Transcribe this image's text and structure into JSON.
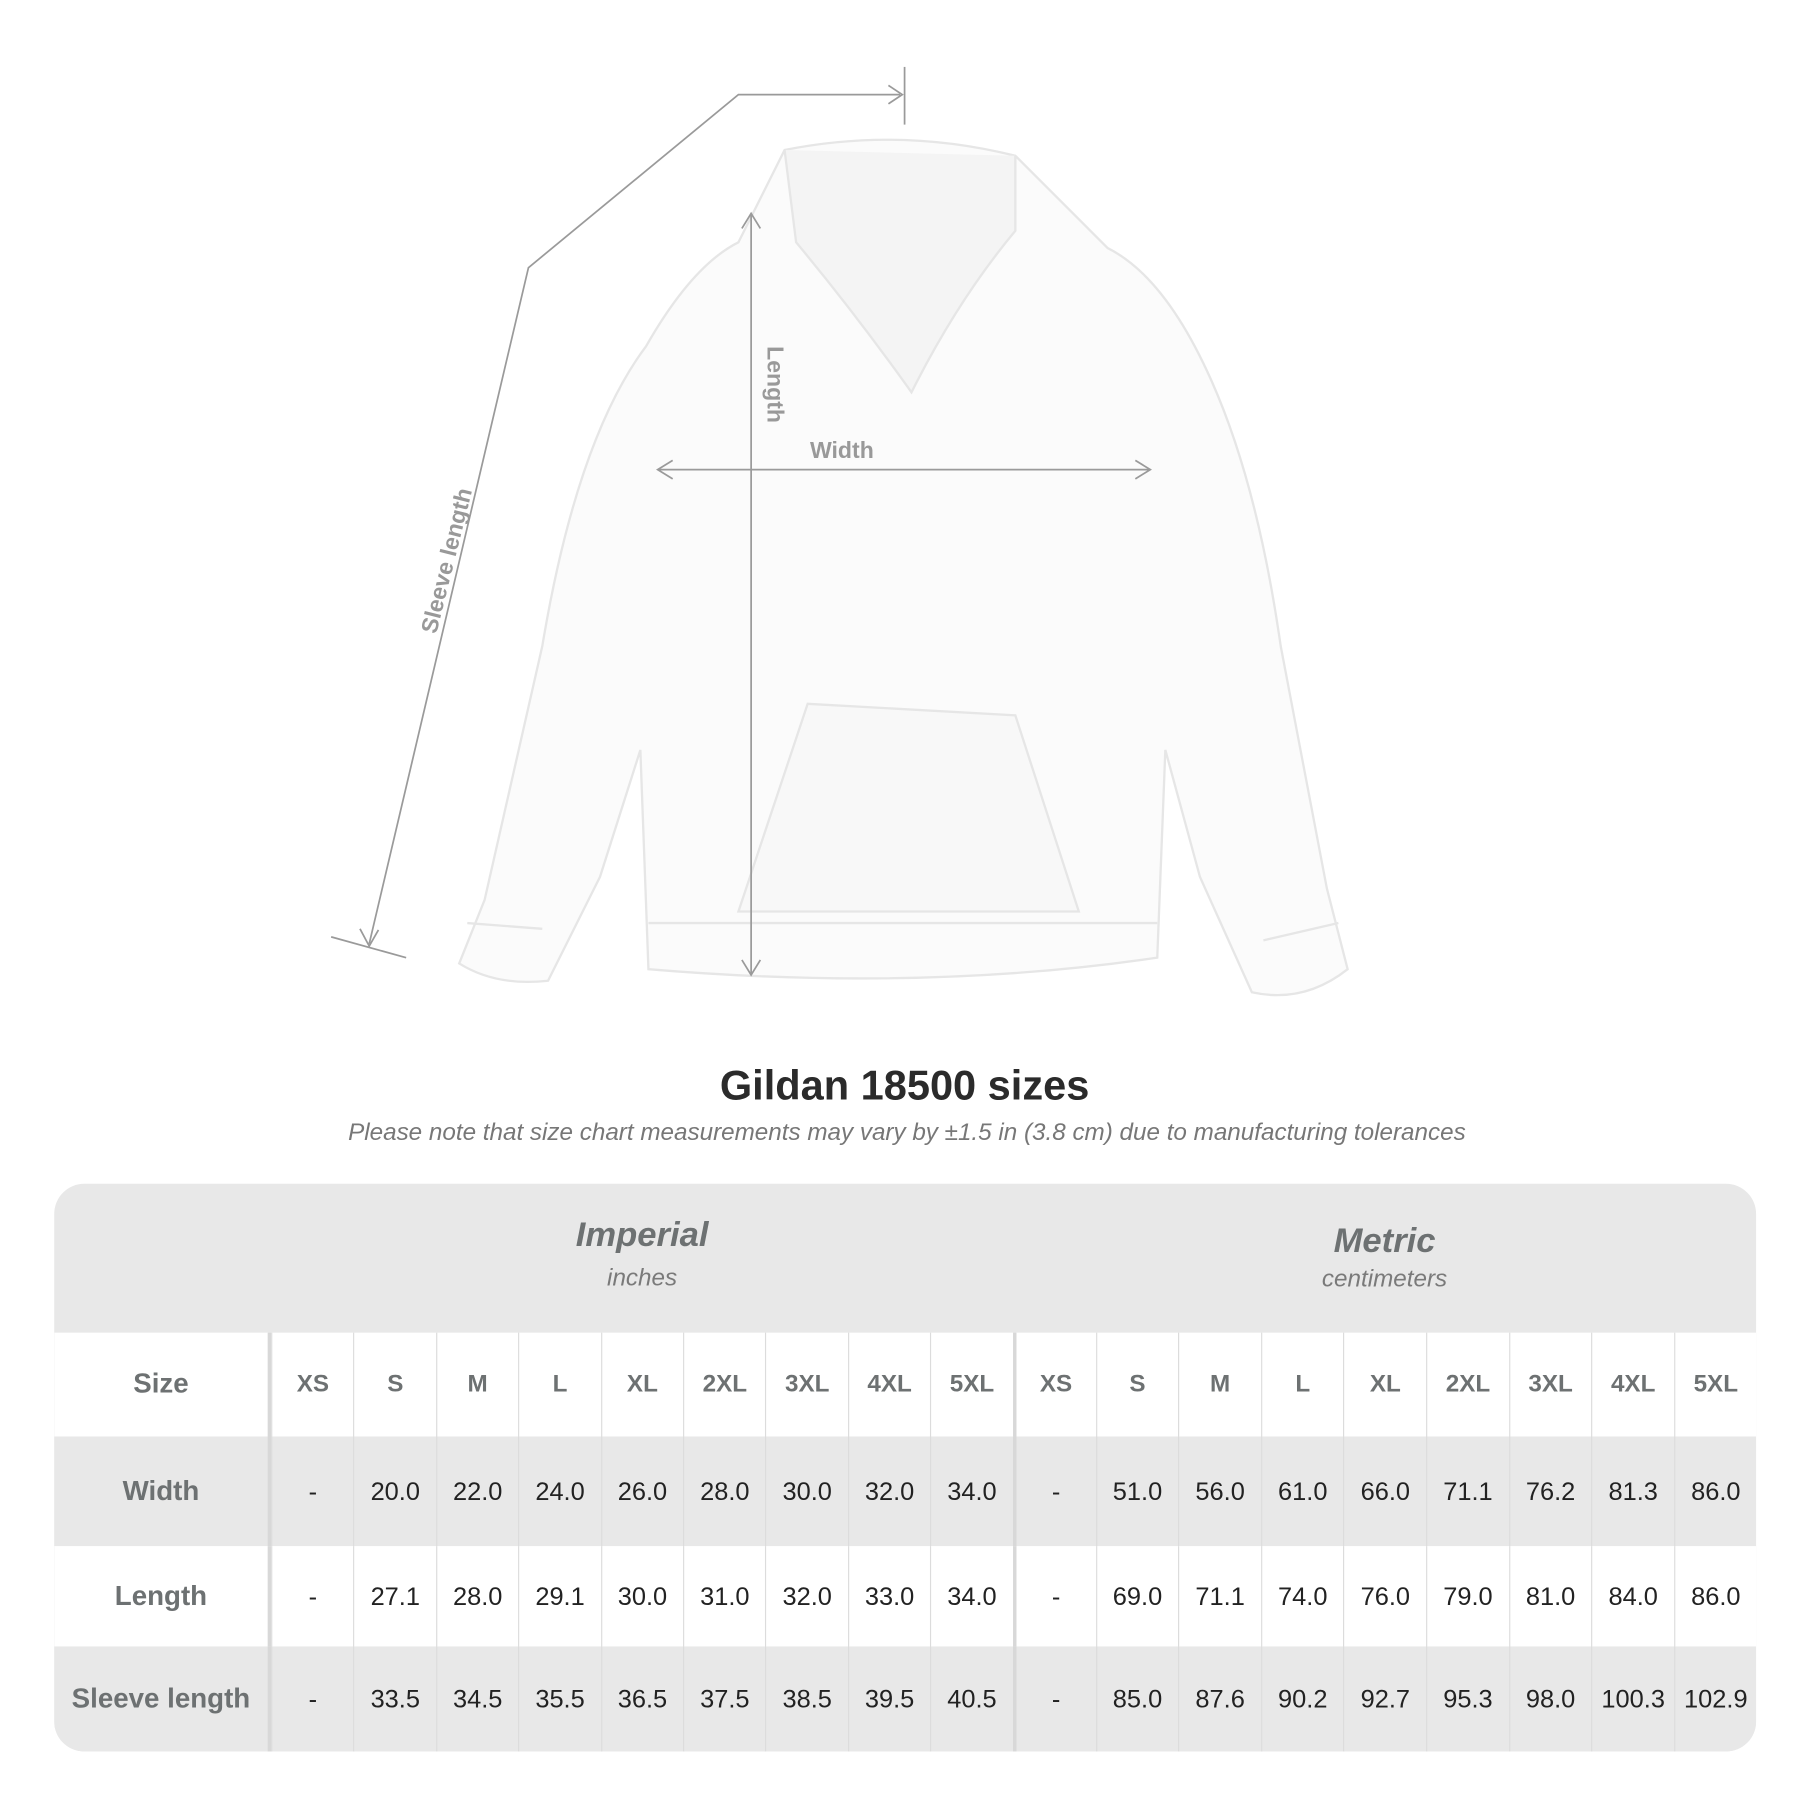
{
  "diagram": {
    "labels": {
      "sleeve": "Sleeve length",
      "length": "Length",
      "width": "Width"
    },
    "line_color": "#9a9a9a"
  },
  "title": "Gildan 18500 sizes",
  "note": "Please note that size chart measurements may vary by ±1.5 in (3.8 cm) due to manufacturing tolerances",
  "table": {
    "imperial": {
      "label": "Imperial",
      "unit": "inches"
    },
    "metric": {
      "label": "Metric",
      "unit": "centimeters"
    },
    "size_label": "Size",
    "sizes": [
      "XS",
      "S",
      "M",
      "L",
      "XL",
      "2XL",
      "3XL",
      "4XL",
      "5XL"
    ],
    "rows": [
      {
        "label": "Width",
        "imperial": [
          "-",
          "20.0",
          "22.0",
          "24.0",
          "26.0",
          "28.0",
          "30.0",
          "32.0",
          "34.0"
        ],
        "metric": [
          "-",
          "51.0",
          "56.0",
          "61.0",
          "66.0",
          "71.1",
          "76.2",
          "81.3",
          "86.0"
        ]
      },
      {
        "label": "Length",
        "imperial": [
          "-",
          "27.1",
          "28.0",
          "29.1",
          "30.0",
          "31.0",
          "32.0",
          "33.0",
          "34.0"
        ],
        "metric": [
          "-",
          "69.0",
          "71.1",
          "74.0",
          "76.0",
          "79.0",
          "81.0",
          "84.0",
          "86.0"
        ]
      },
      {
        "label": "Sleeve length",
        "imperial": [
          "-",
          "33.5",
          "34.5",
          "35.5",
          "36.5",
          "37.5",
          "38.5",
          "39.5",
          "40.5"
        ],
        "metric": [
          "-",
          "85.0",
          "87.6",
          "90.2",
          "92.7",
          "95.3",
          "98.0",
          "100.3",
          "102.9"
        ]
      }
    ]
  }
}
